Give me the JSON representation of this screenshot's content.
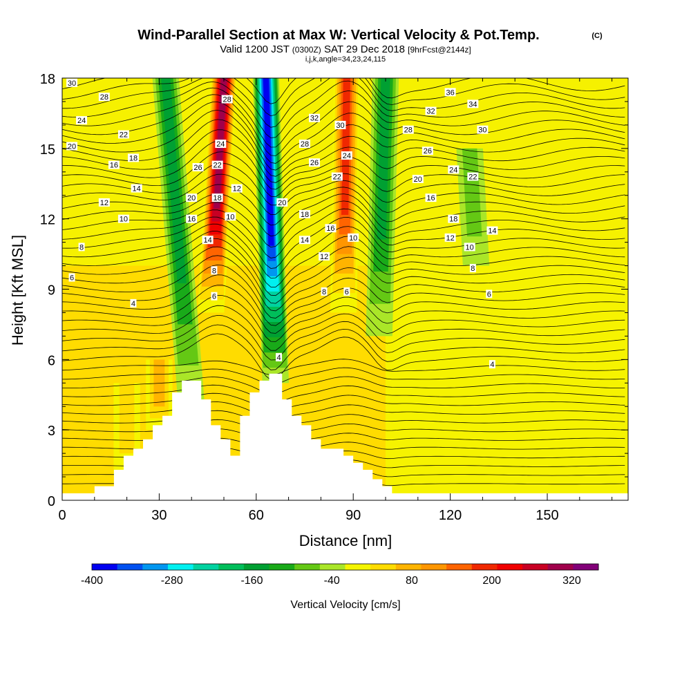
{
  "figure": {
    "title": "Wind-Parallel Section at Max W: Vertical Velocity & Pot.Temp.",
    "title_mark": "(C)",
    "subtitle_valid": "Valid 1200 JST",
    "subtitle_zulu": "(0300Z)",
    "subtitle_date": "SAT 29 Dec 2018",
    "subtitle_fcst": "[9hrFcst@2144z]",
    "subtitle_indices": "i,j,k,angle=34,23,24,115"
  },
  "colorbar": {
    "label": "Vertical Velocity [cm/s]",
    "tick_labels": [
      "-400",
      "-280",
      "-160",
      "-40",
      "80",
      "200",
      "320"
    ],
    "tick_values": [
      -400,
      -280,
      -160,
      -40,
      80,
      200,
      320
    ],
    "min": -400,
    "max": 360,
    "step": 40,
    "colors": [
      "#0000f0",
      "#0050f0",
      "#0096f0",
      "#00f0f0",
      "#00d2a0",
      "#00be5a",
      "#00a032",
      "#19aa19",
      "#64c814",
      "#aae628",
      "#f5f500",
      "#ffdc00",
      "#ffb400",
      "#ff9600",
      "#ff6400",
      "#f02800",
      "#f00000",
      "#c80023",
      "#a0004b",
      "#820078"
    ]
  },
  "chart_data": {
    "type": "heatmap",
    "xlabel": "Distance [nm]",
    "ylabel": "Height [Kft MSL]",
    "xlim": [
      0,
      175
    ],
    "ylim": [
      0,
      18
    ],
    "xticks": [
      "0",
      "30",
      "60",
      "90",
      "120",
      "150"
    ],
    "xtick_values": [
      0,
      30,
      60,
      90,
      120,
      150
    ],
    "yticks": [
      "0",
      "3",
      "6",
      "9",
      "12",
      "15",
      "18"
    ],
    "ytick_values": [
      0,
      3,
      6,
      9,
      12,
      15,
      18
    ],
    "shaded_field": "Vertical Velocity [cm/s]",
    "contour_field": "Potential temperature (contour labels)",
    "velocity_features": [
      {
        "type": "updraft",
        "x_base": 46,
        "x_top": 50,
        "z_min": 8,
        "z_max": 18,
        "peak": 340
      },
      {
        "type": "downdraft",
        "x_base": 66,
        "x_top": 63,
        "z_min": 5,
        "z_max": 18,
        "peak": -400
      },
      {
        "type": "updraft",
        "x_base": 87,
        "x_top": 88,
        "z_min": 8,
        "z_max": 18,
        "peak": 240
      },
      {
        "type": "downdraft",
        "x_base": 98,
        "x_top": 100,
        "z_min": 7,
        "z_max": 18,
        "peak": -160
      },
      {
        "type": "downdraft",
        "x_base": 40,
        "x_top": 32,
        "z_min": 4,
        "z_max": 18,
        "peak": -140
      },
      {
        "type": "downdraft",
        "x_base": 128,
        "x_top": 126,
        "z_min": 10,
        "z_max": 15,
        "peak": -60
      },
      {
        "type": "updraft",
        "x_base": 30,
        "x_top": 30,
        "z_min": 3,
        "z_max": 6,
        "peak": 100
      },
      {
        "type": "updraft",
        "x_base": 20,
        "x_top": 20,
        "z_min": 1,
        "z_max": 5,
        "peak": 90
      }
    ],
    "terrain": {
      "x": [
        0,
        10,
        10,
        16,
        16,
        19,
        19,
        22,
        22,
        25,
        25,
        28,
        28,
        31,
        31,
        34,
        34,
        37,
        37,
        43,
        43,
        46,
        46,
        49,
        49,
        52,
        52,
        55,
        55,
        58,
        58,
        61,
        61,
        64,
        64,
        68,
        68,
        71,
        71,
        74,
        74,
        77,
        77,
        80,
        80,
        87,
        87,
        90,
        90,
        93,
        93,
        96,
        96,
        99,
        99,
        102,
        102,
        175
      ],
      "height_kft": [
        0.3,
        0.3,
        0.6,
        0.6,
        1.3,
        1.3,
        1.9,
        1.9,
        2.2,
        2.2,
        2.6,
        2.6,
        3.2,
        3.2,
        3.6,
        3.6,
        4.6,
        4.6,
        5.1,
        5.1,
        4.3,
        4.3,
        3.2,
        3.2,
        2.6,
        2.6,
        1.9,
        1.9,
        3.6,
        3.6,
        4.6,
        4.6,
        5.1,
        5.1,
        5.4,
        5.4,
        4.3,
        4.3,
        3.6,
        3.6,
        3.2,
        3.2,
        2.6,
        2.6,
        2.2,
        2.2,
        1.9,
        1.9,
        1.6,
        1.6,
        1.3,
        1.3,
        0.9,
        0.9,
        0.6,
        0.6,
        0.3,
        0.3
      ]
    },
    "contour_labels": [
      {
        "text": "30",
        "x": 3,
        "y": 17.8
      },
      {
        "text": "28",
        "x": 13,
        "y": 17.2
      },
      {
        "text": "24",
        "x": 6,
        "y": 16.2
      },
      {
        "text": "22",
        "x": 19,
        "y": 15.6
      },
      {
        "text": "20",
        "x": 3,
        "y": 15.1
      },
      {
        "text": "18",
        "x": 22,
        "y": 14.6
      },
      {
        "text": "16",
        "x": 16,
        "y": 14.3
      },
      {
        "text": "14",
        "x": 23,
        "y": 13.3
      },
      {
        "text": "12",
        "x": 13,
        "y": 12.7
      },
      {
        "text": "10",
        "x": 19,
        "y": 12.0
      },
      {
        "text": "8",
        "x": 6,
        "y": 10.8
      },
      {
        "text": "6",
        "x": 3,
        "y": 9.5
      },
      {
        "text": "4",
        "x": 22,
        "y": 8.4
      },
      {
        "text": "28",
        "x": 51,
        "y": 17.1
      },
      {
        "text": "24",
        "x": 49,
        "y": 15.2
      },
      {
        "text": "22",
        "x": 48,
        "y": 14.3
      },
      {
        "text": "26",
        "x": 42,
        "y": 14.2
      },
      {
        "text": "18",
        "x": 48,
        "y": 12.9
      },
      {
        "text": "12",
        "x": 54,
        "y": 13.3
      },
      {
        "text": "20",
        "x": 40,
        "y": 12.9
      },
      {
        "text": "16",
        "x": 40,
        "y": 12.0
      },
      {
        "text": "10",
        "x": 52,
        "y": 12.1
      },
      {
        "text": "14",
        "x": 45,
        "y": 11.1
      },
      {
        "text": "8",
        "x": 47,
        "y": 9.8
      },
      {
        "text": "6",
        "x": 47,
        "y": 8.7
      },
      {
        "text": "32",
        "x": 78,
        "y": 16.3
      },
      {
        "text": "30",
        "x": 86,
        "y": 16.0
      },
      {
        "text": "28",
        "x": 75,
        "y": 15.2
      },
      {
        "text": "26",
        "x": 78,
        "y": 14.4
      },
      {
        "text": "24",
        "x": 88,
        "y": 14.7
      },
      {
        "text": "22",
        "x": 85,
        "y": 13.8
      },
      {
        "text": "20",
        "x": 68,
        "y": 12.7
      },
      {
        "text": "18",
        "x": 75,
        "y": 12.2
      },
      {
        "text": "16",
        "x": 83,
        "y": 11.6
      },
      {
        "text": "14",
        "x": 75,
        "y": 11.1
      },
      {
        "text": "12",
        "x": 81,
        "y": 10.4
      },
      {
        "text": "10",
        "x": 90,
        "y": 11.2
      },
      {
        "text": "8",
        "x": 81,
        "y": 8.9
      },
      {
        "text": "6",
        "x": 88,
        "y": 8.9
      },
      {
        "text": "4",
        "x": 67,
        "y": 6.1
      },
      {
        "text": "36",
        "x": 120,
        "y": 17.4
      },
      {
        "text": "34",
        "x": 127,
        "y": 16.9
      },
      {
        "text": "32",
        "x": 114,
        "y": 16.6
      },
      {
        "text": "28",
        "x": 107,
        "y": 15.8
      },
      {
        "text": "30",
        "x": 130,
        "y": 15.8
      },
      {
        "text": "26",
        "x": 113,
        "y": 14.9
      },
      {
        "text": "24",
        "x": 121,
        "y": 14.1
      },
      {
        "text": "20",
        "x": 110,
        "y": 13.7
      },
      {
        "text": "22",
        "x": 127,
        "y": 13.8
      },
      {
        "text": "16",
        "x": 114,
        "y": 12.9
      },
      {
        "text": "18",
        "x": 121,
        "y": 12.0
      },
      {
        "text": "14",
        "x": 133,
        "y": 11.5
      },
      {
        "text": "12",
        "x": 120,
        "y": 11.2
      },
      {
        "text": "10",
        "x": 126,
        "y": 10.8
      },
      {
        "text": "8",
        "x": 127,
        "y": 9.9
      },
      {
        "text": "6",
        "x": 132,
        "y": 8.8
      },
      {
        "text": "4",
        "x": 133,
        "y": 5.8
      }
    ]
  }
}
